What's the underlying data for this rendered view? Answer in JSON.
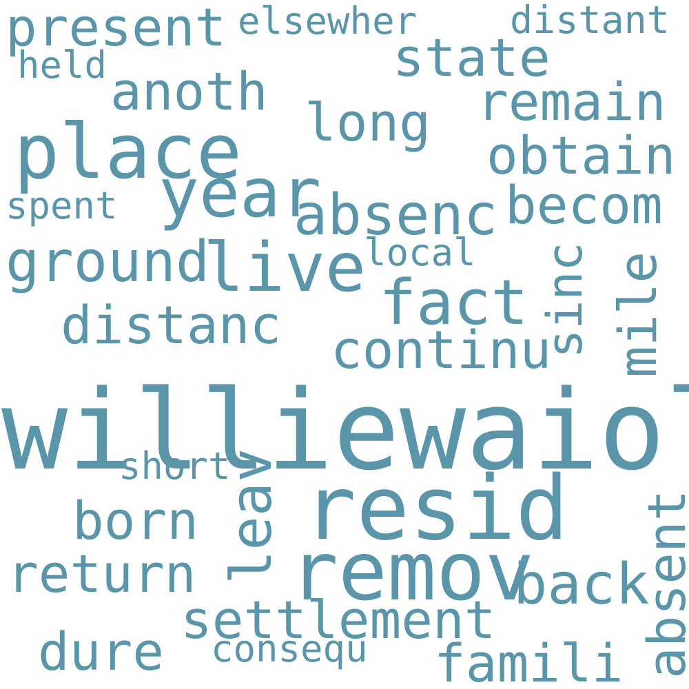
{
  "word_color": "#5a95aa",
  "background": "#ffffff",
  "words": {
    "williewaiola": "williewaiola",
    "resid": "resid",
    "remov": "remov",
    "place": "place",
    "present": "present",
    "year": "year",
    "live": "live",
    "absenc": "absenc",
    "ground": "ground",
    "distanc": "distanc",
    "fact": "fact",
    "anoth": "anoth",
    "state": "state",
    "long": "long",
    "remain": "remain",
    "obtain": "obtain",
    "becom": "becom",
    "continu": "continu",
    "settlement": "settlement",
    "born": "born",
    "return": "return",
    "back": "back",
    "dure": "dure",
    "famili": "famili",
    "mile": "mile",
    "sinc": "sinc",
    "leav": "leav",
    "absent": "absent",
    "elsewher": "elsewher",
    "distant": "distant",
    "held": "held",
    "spent": "spent",
    "local": "local",
    "short": "short",
    "consequ": "consequ"
  }
}
